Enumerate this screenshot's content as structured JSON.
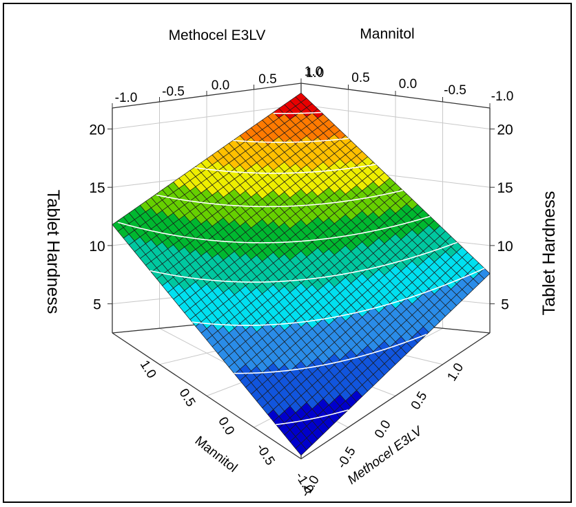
{
  "chart_data": {
    "type": "surface3d",
    "title": "",
    "zlabel": "Tablet Hardness",
    "axes": {
      "methocel": {
        "label": "Methocel E3LV",
        "range": [
          -1.0,
          1.0
        ],
        "ticks": [
          "-1.0",
          "-0.5",
          "0.0",
          "0.5",
          "1.0"
        ]
      },
      "mannitol": {
        "label": "Mannitol",
        "range": [
          -1.0,
          1.0
        ],
        "ticks": [
          "-1.0",
          "-0.5",
          "0.0",
          "0.5",
          "1.0"
        ]
      },
      "hardness": {
        "label": "Tablet Hardness",
        "range": [
          2.5,
          21.8
        ],
        "ticks": [
          "5",
          "10",
          "15",
          "20"
        ]
      }
    },
    "surface_corners": [
      {
        "methocel": 1.0,
        "mannitol": 1.0,
        "hardness": 21.5
      },
      {
        "methocel": -1.0,
        "mannitol": 1.0,
        "hardness": 11.8
      },
      {
        "methocel": 1.0,
        "mannitol": -1.0,
        "hardness": 7.6
      },
      {
        "methocel": -1.0,
        "mannitol": -1.0,
        "hardness": 2.8
      }
    ],
    "contour_levels": [
      4,
      6,
      8,
      10,
      12,
      14,
      16,
      18,
      20
    ],
    "colors": [
      "#0000cc",
      "#1155dd",
      "#2a8ce8",
      "#00e0f0",
      "#00c8a0",
      "#00b830",
      "#66d000",
      "#eeee00",
      "#ffc000",
      "#ff7a00",
      "#e80000"
    ],
    "grid": true
  }
}
